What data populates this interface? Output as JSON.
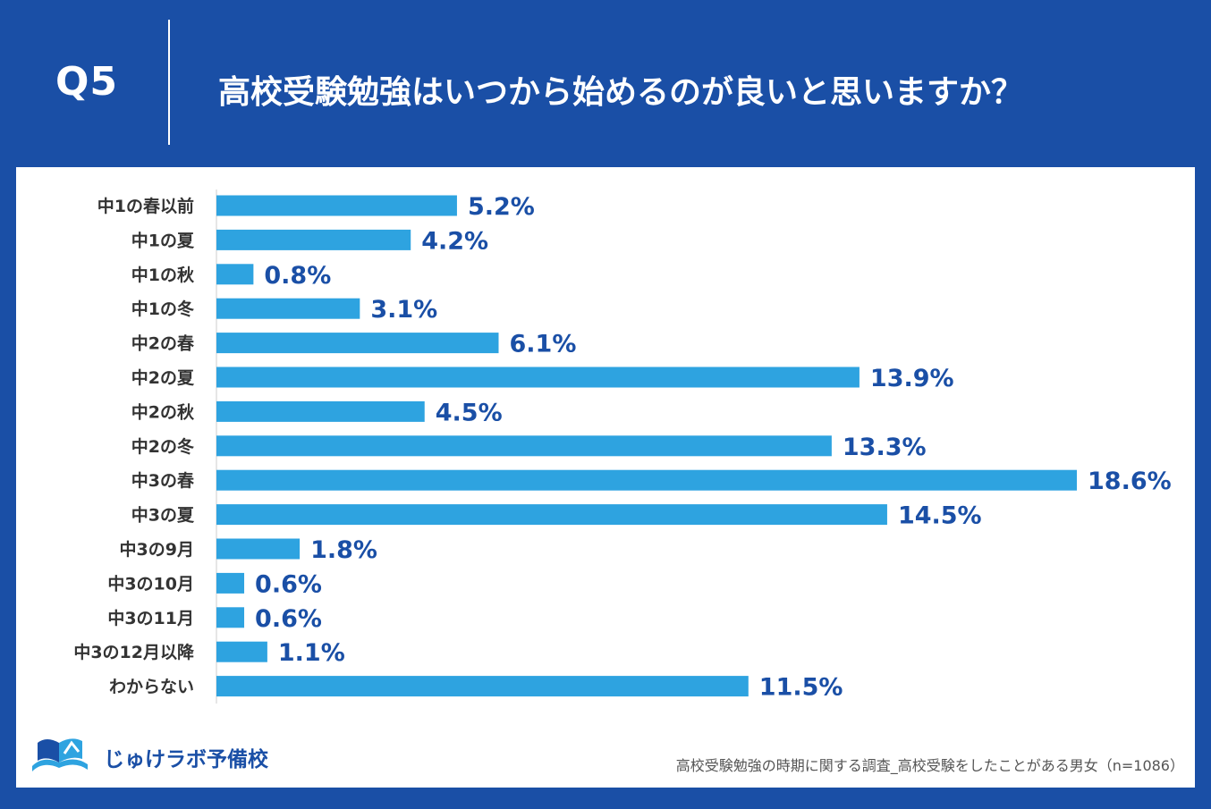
{
  "header": {
    "question": "Q5",
    "title": "高校受験勉強はいつから始めるのが良いと思いますか？"
  },
  "chart_data": {
    "type": "bar",
    "orientation": "horizontal",
    "categories": [
      "中1の春以前",
      "中1の夏",
      "中1の秋",
      "中1の冬",
      "中2の春",
      "中2の夏",
      "中2の秋",
      "中2の冬",
      "中3の春",
      "中3の夏",
      "中3の9月",
      "中3の10月",
      "中3の11月",
      "中3の12月以降",
      "わからない"
    ],
    "values": [
      5.2,
      4.2,
      0.8,
      3.1,
      6.1,
      13.9,
      4.5,
      13.3,
      18.6,
      14.5,
      1.8,
      0.6,
      0.6,
      1.1,
      11.5
    ],
    "value_labels": [
      "5.2%",
      "4.2%",
      "0.8%",
      "3.1%",
      "6.1%",
      "13.9%",
      "4.5%",
      "13.3%",
      "18.6%",
      "14.5%",
      "1.8%",
      "0.6%",
      "0.6%",
      "1.1%",
      "11.5%"
    ],
    "unit": "%",
    "xlim": [
      0,
      18.6
    ],
    "bar_color": "#2ea3e0",
    "label_color": "#1a4fa6"
  },
  "footer": {
    "logo_text": "じゅけラボ予備校",
    "note": "高校受験勉強の時期に関する調査_高校受験をしたことがある男女（n=1086）"
  }
}
